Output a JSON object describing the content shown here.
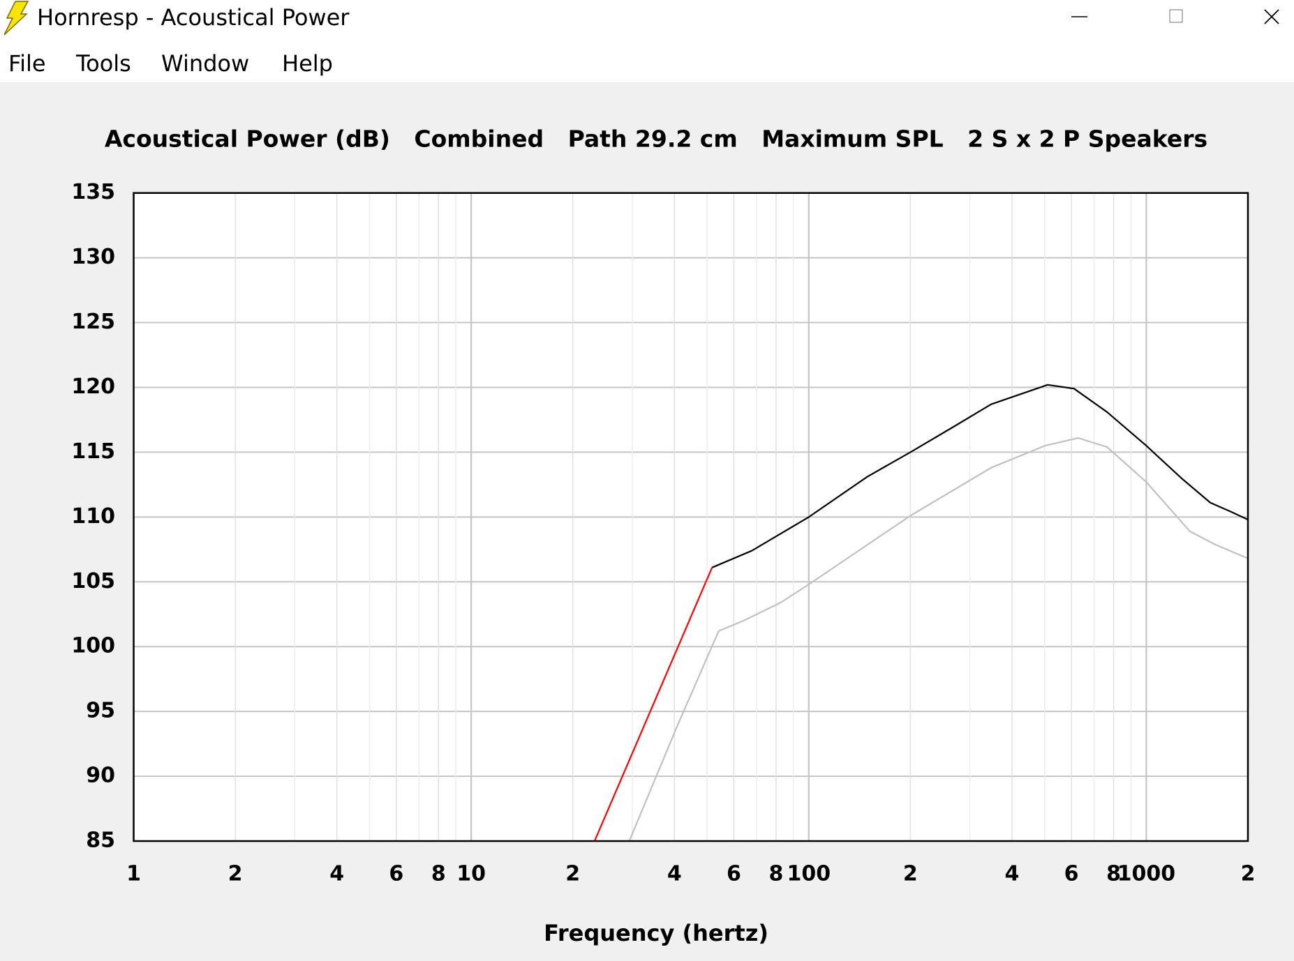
{
  "window": {
    "title": "Hornresp - Acoustical Power",
    "menu": [
      "File",
      "Tools",
      "Window",
      "Help"
    ]
  },
  "chart_data": {
    "type": "line",
    "title": "Acoustical Power (dB)   Combined   Path 29.2 cm   Maximum SPL   2 S x 2 P Speakers",
    "x_label": "Frequency (hertz)",
    "xscale": "log",
    "xlim": [
      1,
      2000
    ],
    "xticks": [
      1,
      2,
      4,
      6,
      8,
      10,
      {
        "value": 20,
        "label": "2"
      },
      {
        "value": 40,
        "label": "4"
      },
      {
        "value": 60,
        "label": "6"
      },
      {
        "value": 80,
        "label": "8"
      },
      100,
      {
        "value": 200,
        "label": "2"
      },
      {
        "value": 400,
        "label": "4"
      },
      {
        "value": 600,
        "label": "6"
      },
      {
        "value": 800,
        "label": "8"
      },
      1000,
      {
        "value": 2000,
        "label": "2"
      }
    ],
    "x_minor_ticks": [
      3,
      5,
      7,
      9,
      30,
      50,
      70,
      90,
      300,
      500,
      700,
      900
    ],
    "ylim": [
      85,
      135
    ],
    "yticks": [
      85,
      90,
      95,
      100,
      105,
      110,
      115,
      120,
      125,
      130,
      135
    ],
    "grid": true,
    "series": [
      {
        "color": "#c0c0c0",
        "x": [
          29.4,
          40.8,
          54.1,
          64.1,
          82.6,
          100,
          200,
          347,
          501,
          628,
          765,
          1000,
          1345,
          1593,
          2000
        ],
        "values": [
          85,
          93.9,
          101.2,
          102.0,
          103.4,
          104.8,
          110.1,
          113.8,
          115.5,
          116.1,
          115.4,
          112.7,
          108.9,
          107.9,
          106.8
        ]
      },
      {
        "color": "#ff0000",
        "x": [
          23.2,
          51.7
        ],
        "values": [
          85,
          106.1
        ]
      },
      {
        "color": "#000000",
        "x": [
          51.7,
          67.8,
          100,
          149,
          200,
          262,
          347,
          510,
          611,
          765,
          1000,
          1270,
          1548,
          1783,
          2000
        ],
        "values": [
          106.1,
          107.4,
          110.0,
          113.1,
          115.0,
          116.8,
          118.7,
          120.2,
          119.9,
          118.1,
          115.5,
          113.0,
          111.1,
          110.4,
          109.8
        ]
      }
    ]
  }
}
